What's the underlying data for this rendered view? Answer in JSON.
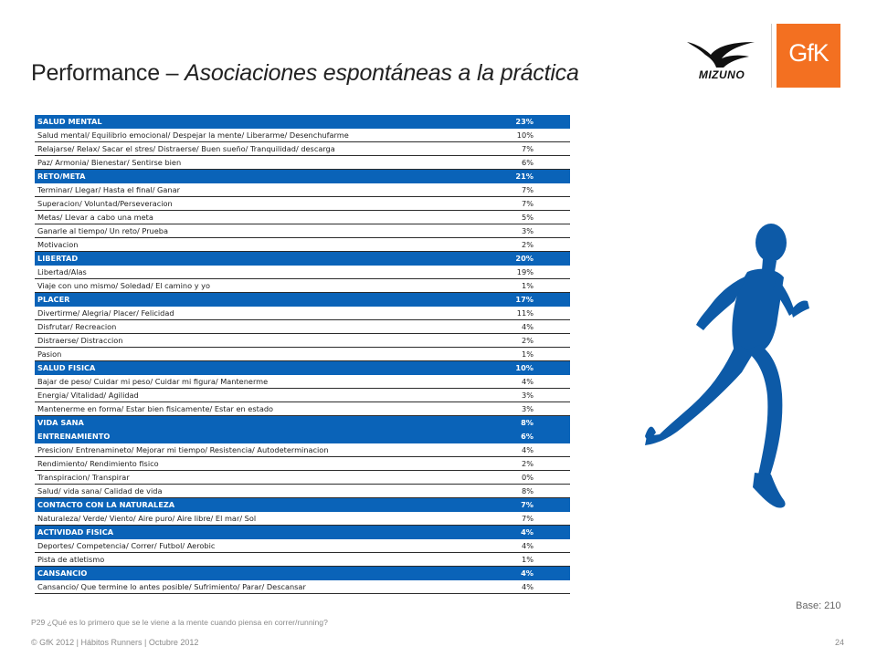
{
  "header": {
    "title_prefix": "Performance – ",
    "title_italic": "Asociaciones espontáneas a la práctica",
    "brand_logo": "MIZUNO",
    "brand_logo_icon": "mizuno-runbird-icon",
    "company_logo": "GfK",
    "company_logo_color": "#f37021"
  },
  "table": {
    "category_color": "#0a63b8",
    "rows": [
      {
        "type": "cat",
        "label": "SALUD MENTAL",
        "value": "23%"
      },
      {
        "type": "item",
        "label": "Salud mental/ Equilibrio emocional/ Despejar la mente/ Liberarme/ Desenchufarme",
        "value": "10%"
      },
      {
        "type": "item",
        "label": "Relajarse/ Relax/ Sacar el stres/ Distraerse/ Buen sueño/ Tranquilidad/ descarga",
        "value": "7%"
      },
      {
        "type": "item",
        "label": "Paz/ Armonia/ Bienestar/ Sentirse bien",
        "value": "6%"
      },
      {
        "type": "cat",
        "label": "RETO/META",
        "value": "21%"
      },
      {
        "type": "item",
        "label": "Terminar/ Llegar/ Hasta el final/ Ganar",
        "value": "7%"
      },
      {
        "type": "item",
        "label": "Superacion/ Voluntad/Perseveracion",
        "value": "7%"
      },
      {
        "type": "item",
        "label": "Metas/ Llevar a cabo una meta",
        "value": "5%"
      },
      {
        "type": "item",
        "label": "Ganarle al tiempo/ Un reto/ Prueba",
        "value": "3%"
      },
      {
        "type": "item",
        "label": "Motivacion",
        "value": "2%"
      },
      {
        "type": "cat",
        "label": "LIBERTAD",
        "value": "20%"
      },
      {
        "type": "item",
        "label": "Libertad/Alas",
        "value": "19%"
      },
      {
        "type": "item",
        "label": "Viaje con uno mismo/ Soledad/ El camino y yo",
        "value": "1%"
      },
      {
        "type": "cat",
        "label": "PLACER",
        "value": "17%"
      },
      {
        "type": "item",
        "label": "Divertirme/ Alegria/ Placer/ Felicidad",
        "value": "11%"
      },
      {
        "type": "item",
        "label": "Disfrutar/ Recreacion",
        "value": "4%"
      },
      {
        "type": "item",
        "label": "Distraerse/ Distraccion",
        "value": "2%"
      },
      {
        "type": "item",
        "label": "Pasion",
        "value": "1%"
      },
      {
        "type": "cat",
        "label": "SALUD FISICA",
        "value": "10%"
      },
      {
        "type": "item",
        "label": "Bajar de peso/ Cuidar mi peso/ Cuidar mi figura/ Mantenerme",
        "value": "4%"
      },
      {
        "type": "item",
        "label": "Energia/ Vitalidad/ Agilidad",
        "value": "3%"
      },
      {
        "type": "item",
        "label": "Mantenerme en forma/ Estar bien fisicamente/ Estar en estado",
        "value": "3%"
      },
      {
        "type": "cat",
        "label": "VIDA SANA",
        "value": "8%"
      },
      {
        "type": "cat",
        "label": "ENTRENAMIENTO",
        "value": "6%"
      },
      {
        "type": "item",
        "label": "Presicion/ Entrenamineto/ Mejorar mi tiempo/ Resistencia/ Autodeterminacion",
        "value": "4%"
      },
      {
        "type": "item",
        "label": "Rendimiento/ Rendimiento fisico",
        "value": "2%"
      },
      {
        "type": "item",
        "label": "Transpiracion/ Transpirar",
        "value": "0%"
      },
      {
        "type": "item",
        "label": "Salud/ vida sana/ Calidad de vida",
        "value": "8%"
      },
      {
        "type": "cat",
        "label": "CONTACTO CON LA NATURALEZA",
        "value": "7%"
      },
      {
        "type": "item",
        "label": "Naturaleza/ Verde/ Viento/ Aire puro/ Aire libre/ El mar/ Sol",
        "value": "7%"
      },
      {
        "type": "cat",
        "label": "ACTIVIDAD FISICA",
        "value": "4%"
      },
      {
        "type": "item",
        "label": "Deportes/ Competencia/ Correr/ Futbol/ Aerobic",
        "value": "4%"
      },
      {
        "type": "item",
        "label": "Pista de atletismo",
        "value": "1%"
      },
      {
        "type": "cat",
        "label": "CANSANCIO",
        "value": "4%"
      },
      {
        "type": "item",
        "label": "Cansancio/ Que termine lo antes posible/ Sufrimiento/ Parar/ Descansar",
        "value": "4%"
      }
    ]
  },
  "illustration": {
    "icon": "runner-silhouette-icon",
    "color": "#0d5aa7"
  },
  "base_label": "Base: 210",
  "question": "P29 ¿Qué es lo primero que se le viene a la mente cuando piensa en correr/running?",
  "footer": "© GfK 2012 | Hábitos Runners | Octubre 2012",
  "page_number": "24"
}
